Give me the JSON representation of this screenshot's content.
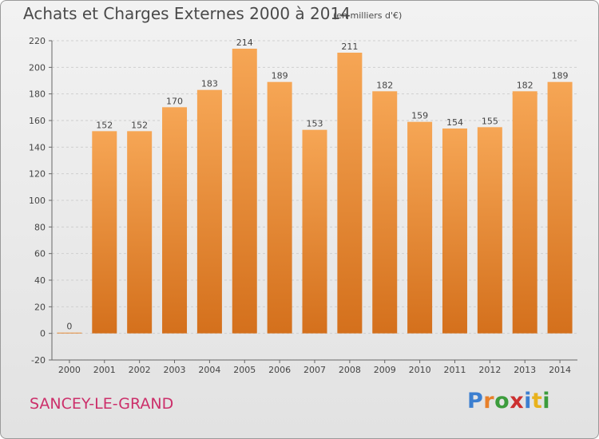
{
  "header": {
    "title": "Achats et Charges Externes 2000 à 2014",
    "subtitle": "(en milliers d'€)"
  },
  "footer": {
    "city": "SANCEY-LE-GRAND",
    "brand_letters": [
      "P",
      "r",
      "o",
      "x",
      "i",
      "t",
      "i"
    ],
    "brand_colors": [
      "#3c7fd0",
      "#e8802a",
      "#3c9c3c",
      "#cc3030",
      "#3c7fd0",
      "#e8b21c",
      "#3c9c3c"
    ]
  },
  "colors": {
    "bar_light": "#f6a655",
    "bar_dark": "#d4701c",
    "grid": "#cfcfcf",
    "axis_text": "#444444",
    "value_text": "#444444"
  },
  "chart_data": {
    "type": "bar",
    "title": "Achats et Charges Externes 2000 à 2014",
    "subtitle": "(en milliers d'€)",
    "categories": [
      "2000",
      "2001",
      "2002",
      "2003",
      "2004",
      "2005",
      "2006",
      "2007",
      "2008",
      "2009",
      "2010",
      "2011",
      "2012",
      "2013",
      "2014"
    ],
    "values": [
      0,
      152,
      152,
      170,
      183,
      214,
      189,
      153,
      211,
      182,
      159,
      154,
      155,
      182,
      189
    ],
    "ylim": [
      -20,
      220
    ],
    "yticks": [
      -20,
      0,
      20,
      40,
      60,
      80,
      100,
      120,
      140,
      160,
      180,
      200,
      220
    ],
    "grid": true,
    "xlabel": "",
    "ylabel": ""
  }
}
